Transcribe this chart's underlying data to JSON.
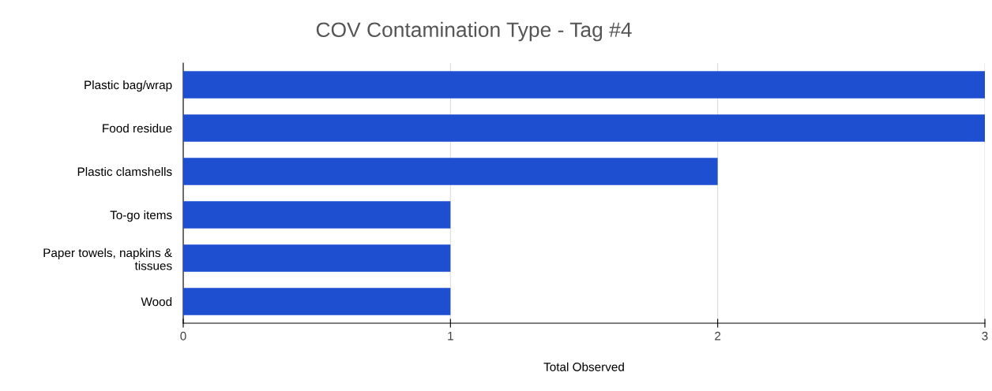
{
  "chart_data": {
    "type": "bar",
    "orientation": "horizontal",
    "title": "COV Contamination Type - Tag #4",
    "xlabel": "Total Observed",
    "categories": [
      "Plastic bag/wrap",
      "Food residue",
      "Plastic clamshells",
      "To-go items",
      "Paper towels, napkins &\ntissues",
      "Wood"
    ],
    "values": [
      3,
      3,
      2,
      1,
      1,
      1
    ],
    "color": "#1f4fd1",
    "xlim": [
      0,
      3
    ],
    "xticks": [
      0,
      1,
      2,
      3
    ],
    "grid": "x"
  }
}
